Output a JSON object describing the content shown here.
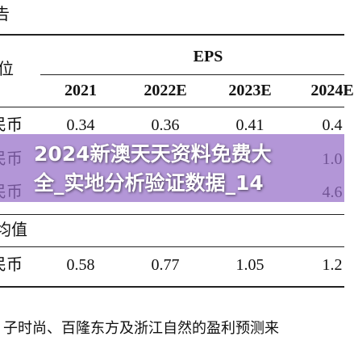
{
  "header": {
    "title": "告"
  },
  "table": {
    "unit_label": "位",
    "group_header": "EPS",
    "columns": [
      "2021",
      "2022E",
      "2023E",
      "2024E"
    ],
    "rows": [
      {
        "label": "民币",
        "cells": [
          "0.34",
          "0.36",
          "0.41",
          "0.4"
        ]
      },
      {
        "label": "民币",
        "cells": [
          null,
          null,
          null,
          "1.0"
        ]
      },
      {
        "label": "民币",
        "cells": [
          null,
          null,
          null,
          "4.6"
        ]
      }
    ],
    "section_label": "均值",
    "average_row": {
      "label": "民币",
      "cells": [
        "0.58",
        "0.77",
        "1.05",
        "1.2"
      ]
    }
  },
  "footnote": "子时尚、百隆东方及浙江自然的盈利预测来",
  "banner": {
    "line1": "2024新澳天天资料免费大",
    "line2": "全_实地分析验证数据_14"
  }
}
